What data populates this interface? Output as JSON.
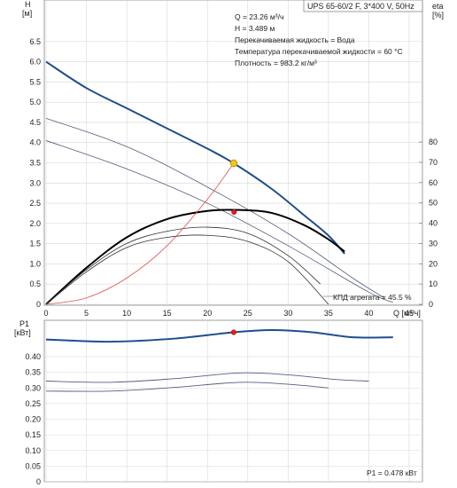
{
  "chart_data": [
    {
      "type": "line",
      "title": "UPS 65-60/2 F, 3*400 V, 50Hz",
      "ylabel_top": "H",
      "ylabel_unit": "[м]",
      "y2label_top": "eta",
      "y2label_unit": "[%]",
      "xlabel": "Q [м³/ч]",
      "xlim": [
        0,
        45
      ],
      "ylim": [
        0,
        7
      ],
      "y2lim": [
        0,
        100
      ],
      "x_ticks": [
        "0",
        "5",
        "10",
        "15",
        "20",
        "25",
        "30",
        "35",
        "40",
        "45"
      ],
      "y_ticks": [
        "0",
        "0.5",
        "1.0",
        "1.5",
        "2.0",
        "2.5",
        "3.0",
        "3.5",
        "4.0",
        "4.5",
        "5.0",
        "5.5",
        "6.0",
        "6.5"
      ],
      "y2_ticks": [
        "0",
        "10",
        "20",
        "30",
        "40",
        "50",
        "60",
        "70",
        "80"
      ],
      "grid": true,
      "info_lines": [
        "Q = 23.26 м³/ч",
        "H = 3.489 м",
        "Перекачиваемая жидкость = Вода",
        "Температура перекачиваемой жидкости = 60 °C",
        "Плотность = 983.2 кг/м³"
      ],
      "eta_label": "КПД агрегата = 45.5 %",
      "duty_point": {
        "x": 23.26,
        "y": 3.489
      },
      "eta_point": {
        "x": 23.3,
        "y": 45.5
      },
      "series": [
        {
          "role": "head-max",
          "color": "#1f4e8c",
          "axis": "H",
          "x": [
            0,
            5,
            10,
            15,
            20,
            23.26,
            28,
            32,
            35,
            37
          ],
          "y": [
            6.0,
            5.35,
            4.85,
            4.35,
            3.85,
            3.489,
            2.85,
            2.2,
            1.7,
            1.25
          ]
        },
        {
          "role": "head-speed-2",
          "color": "#555e80",
          "axis": "H",
          "x": [
            0,
            10,
            20,
            30,
            38,
            42
          ],
          "y": [
            4.6,
            3.9,
            2.9,
            1.75,
            0.65,
            0.15
          ]
        },
        {
          "role": "head-speed-1",
          "color": "#555e80",
          "axis": "H",
          "x": [
            0,
            10,
            20,
            30,
            40,
            43
          ],
          "y": [
            4.05,
            3.35,
            2.5,
            1.45,
            0.3,
            0.05
          ]
        },
        {
          "role": "eta-max",
          "color": "#000000",
          "axis": "eta",
          "x": [
            0,
            5,
            10,
            15,
            20,
            24,
            28,
            32,
            35,
            37
          ],
          "y": [
            0,
            18,
            33,
            42,
            46,
            46.5,
            45,
            39,
            32,
            26
          ]
        },
        {
          "role": "eta-speed-2",
          "color": "#333333",
          "axis": "eta",
          "x": [
            0,
            5,
            10,
            15,
            20,
            25,
            30,
            34
          ],
          "y": [
            0,
            17,
            30,
            36,
            38,
            35,
            24,
            10
          ]
        },
        {
          "role": "eta-speed-1",
          "color": "#333333",
          "axis": "eta",
          "x": [
            0,
            5,
            10,
            15,
            20,
            25,
            30,
            35
          ],
          "y": [
            0,
            16,
            28,
            33,
            34,
            31,
            21,
            0
          ]
        },
        {
          "role": "system-curve",
          "color": "#e05050",
          "axis": "H",
          "x": [
            0,
            5,
            10,
            15,
            20,
            23.26
          ],
          "y": [
            0,
            0.16,
            0.65,
            1.45,
            2.6,
            3.489
          ]
        }
      ]
    },
    {
      "type": "line",
      "ylabel_top": "P1",
      "ylabel_unit": "[кВт]",
      "xlim": [
        0,
        45
      ],
      "ylim": [
        0,
        0.48
      ],
      "y_ticks": [
        "0",
        "0.05",
        "0.10",
        "0.15",
        "0.20",
        "0.25",
        "0.30",
        "0.35",
        "0.40"
      ],
      "grid": true,
      "p1_label": "P1 = 0.478 кВт",
      "duty_point": {
        "x": 23.26,
        "y": 0.478
      },
      "series": [
        {
          "role": "p1-max",
          "color": "#1f4e8c",
          "x": [
            0,
            8,
            16,
            23.26,
            28,
            33,
            38,
            43
          ],
          "y": [
            0.455,
            0.448,
            0.458,
            0.478,
            0.485,
            0.478,
            0.462,
            0.462
          ]
        },
        {
          "role": "p1-speed-2",
          "color": "#555e80",
          "x": [
            0,
            8,
            16,
            24,
            30,
            36,
            40
          ],
          "y": [
            0.322,
            0.318,
            0.33,
            0.348,
            0.342,
            0.327,
            0.322
          ]
        },
        {
          "role": "p1-speed-1",
          "color": "#555e80",
          "x": [
            0,
            8,
            16,
            24,
            30,
            35
          ],
          "y": [
            0.29,
            0.29,
            0.302,
            0.318,
            0.312,
            0.3
          ]
        }
      ]
    }
  ]
}
